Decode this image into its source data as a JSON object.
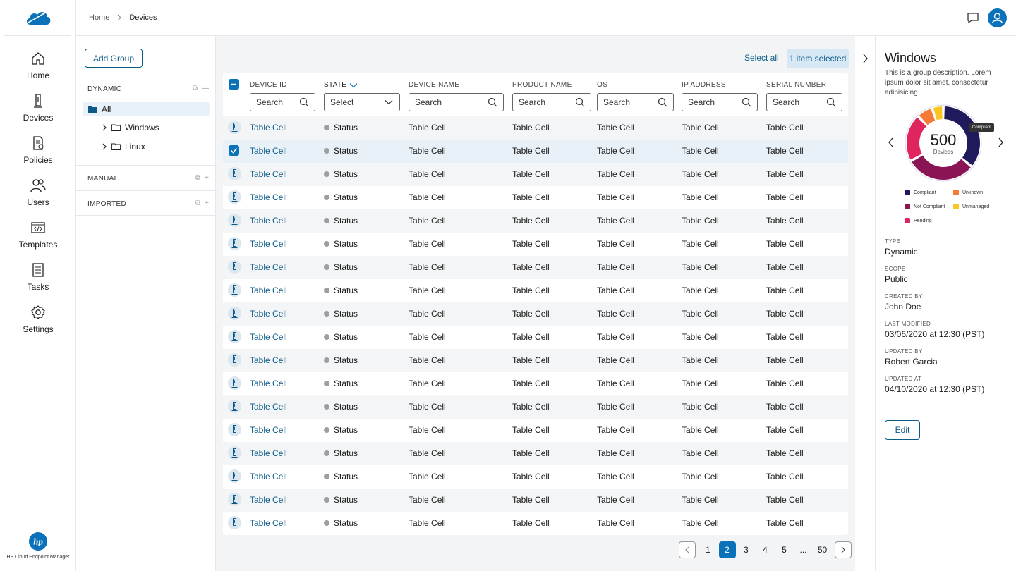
{
  "nav": {
    "items": [
      {
        "label": "Home",
        "icon": "home-icon"
      },
      {
        "label": "Devices",
        "icon": "device-icon"
      },
      {
        "label": "Policies",
        "icon": "policy-icon"
      },
      {
        "label": "Users",
        "icon": "users-icon"
      },
      {
        "label": "Templates",
        "icon": "template-icon"
      },
      {
        "label": "Tasks",
        "icon": "tasks-icon"
      },
      {
        "label": "Settings",
        "icon": "gear-icon"
      }
    ],
    "product_name": "HP Cloud Endpoint Manager"
  },
  "header": {
    "breadcrumb_home": "Home",
    "breadcrumb_current": "Devices"
  },
  "groups": {
    "add_label": "Add Group",
    "dynamic_label": "DYNAMIC",
    "tree": [
      "All",
      "Windows",
      "Linux"
    ],
    "manual_label": "MANUAL",
    "imported_label": "IMPORTED"
  },
  "toolbar": {
    "select_all": "Select all",
    "selected_count": "1 item selected"
  },
  "table": {
    "columns": [
      {
        "label": "DEVICE ID",
        "filter": "Search"
      },
      {
        "label": "STATE",
        "filter": "Select"
      },
      {
        "label": "DEVICE NAME",
        "filter": "Search"
      },
      {
        "label": "PRODUCT NAME",
        "filter": "Search"
      },
      {
        "label": "OS",
        "filter": "Search"
      },
      {
        "label": "IP ADDRESS",
        "filter": "Search"
      },
      {
        "label": "SERIAL NUMBER",
        "filter": "Search"
      }
    ],
    "cell_text": "Table Cell",
    "status_text": "Status",
    "row_count": 18,
    "selected_row": 1
  },
  "pagination": {
    "pages": [
      "1",
      "2",
      "3",
      "4",
      "5",
      "...",
      "50"
    ],
    "active": "2"
  },
  "detail": {
    "title": "Windows",
    "description": "This is a group description. Lorem ipsum dolor sit amet, consectetur adipisicing.",
    "total": "500",
    "total_label": "Devices",
    "tooltip": "Compliant",
    "legend": [
      {
        "label": "Compliant",
        "color": "#1f1a5c"
      },
      {
        "label": "Unknown",
        "color": "#f47a35"
      },
      {
        "label": "Not Compliant",
        "color": "#8a1456"
      },
      {
        "label": "Unmanaged",
        "color": "#f9c623"
      },
      {
        "label": "Pending",
        "color": "#e0245e"
      }
    ],
    "segments": [
      {
        "label": "Compliant",
        "value": 0.36,
        "color": "#1f1a5c"
      },
      {
        "label": "Not Compliant",
        "value": 0.31,
        "color": "#8a1456"
      },
      {
        "label": "Pending",
        "value": 0.21,
        "color": "#e0245e"
      },
      {
        "label": "Unknown",
        "value": 0.07,
        "color": "#f47a35"
      },
      {
        "label": "Unmanaged",
        "value": 0.05,
        "color": "#f9c623"
      }
    ],
    "meta": [
      {
        "label": "TYPE",
        "value": "Dynamic"
      },
      {
        "label": "SCOPE",
        "value": "Public"
      },
      {
        "label": "CREATED BY",
        "value": "John Doe"
      },
      {
        "label": "LAST MODIFIED",
        "value": "03/06/2020 at 12:30 (PST)"
      },
      {
        "label": "UPDATED BY",
        "value": "Robert Garcia"
      },
      {
        "label": "UPDATED AT",
        "value": "04/10/2020 at 12:30 (PST)"
      }
    ],
    "edit_label": "Edit"
  }
}
